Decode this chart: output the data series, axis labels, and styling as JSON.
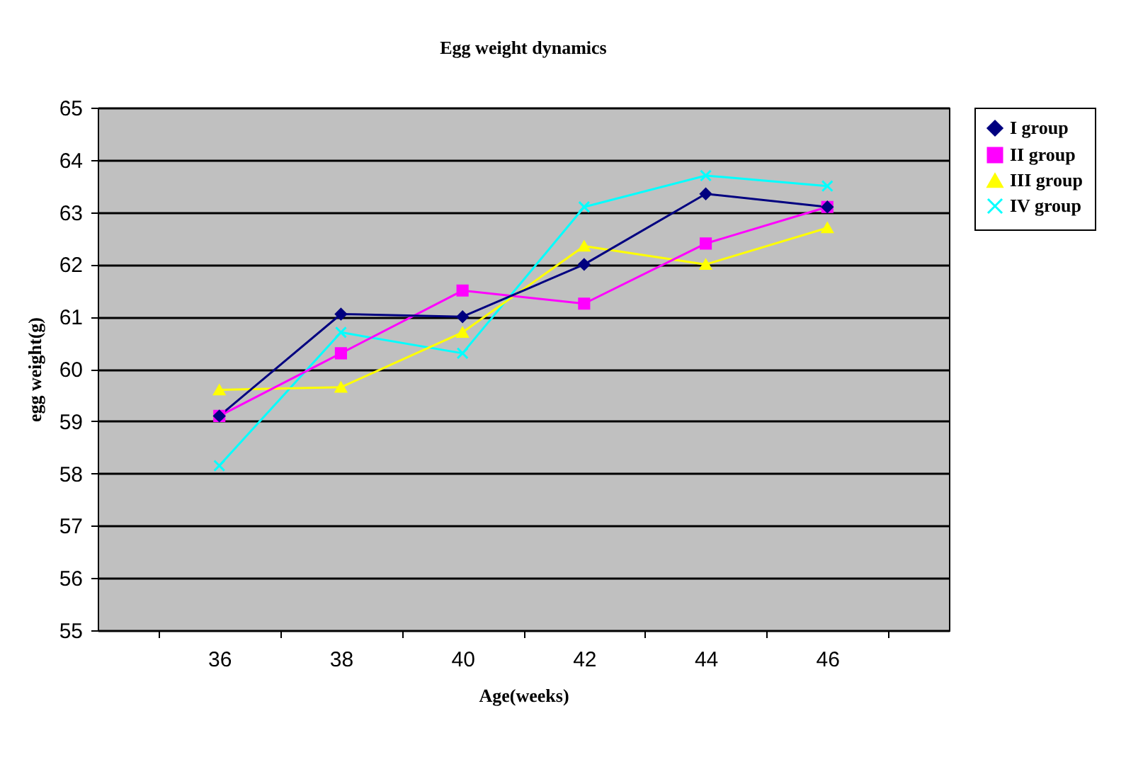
{
  "chart_data": {
    "type": "line",
    "title": "Egg weight dynamics",
    "xlabel": "Age(weeks)",
    "ylabel": "egg weight(g)",
    "categories": [
      "36",
      "38",
      "40",
      "42",
      "44",
      "46"
    ],
    "series": [
      {
        "name": "I group",
        "color": "#000080",
        "marker": "diamond",
        "values": [
          59.1,
          61.05,
          61.0,
          62.0,
          63.35,
          63.1
        ]
      },
      {
        "name": "II group",
        "color": "#ff00ff",
        "marker": "square",
        "values": [
          59.1,
          60.3,
          61.5,
          61.25,
          62.4,
          63.1
        ]
      },
      {
        "name": "III group",
        "color": "#ffff00",
        "marker": "triangle",
        "values": [
          59.6,
          59.65,
          60.7,
          62.35,
          62.0,
          62.7
        ]
      },
      {
        "name": "IV group",
        "color": "#00ffff",
        "marker": "cross",
        "values": [
          58.15,
          60.7,
          60.3,
          63.1,
          63.7,
          63.5
        ]
      }
    ],
    "ylim": [
      55,
      65
    ],
    "yticks": [
      55,
      56,
      57,
      58,
      59,
      60,
      61,
      62,
      63,
      64,
      65
    ],
    "grid": "y",
    "legend": "right"
  }
}
